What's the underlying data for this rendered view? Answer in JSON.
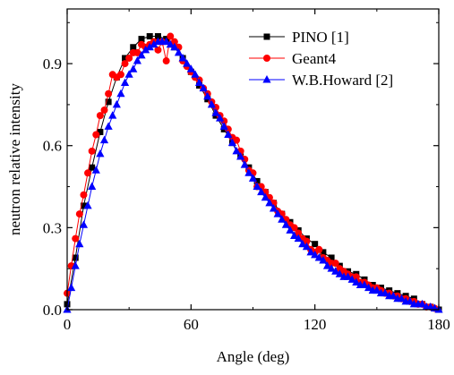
{
  "chart_data": {
    "type": "line",
    "title": "",
    "xlabel": "Angle (deg)",
    "ylabel": "neutron relative intensity",
    "xlim": [
      0,
      180
    ],
    "ylim": [
      0,
      1.1
    ],
    "xticks": [
      0,
      60,
      120,
      180
    ],
    "xtick_labels": [
      "0",
      "60",
      "120",
      "180"
    ],
    "yticks": [
      0,
      0.3,
      0.6,
      0.9
    ],
    "ytick_labels": [
      "0.0",
      "0.3",
      "0.6",
      "0.9"
    ],
    "grid": false,
    "legend_position": "top-right",
    "series": [
      {
        "name": "PINO [1]",
        "color": "#000000",
        "marker": "square",
        "x": [
          0,
          4,
          8,
          12,
          16,
          20,
          24,
          28,
          32,
          36,
          40,
          44,
          48,
          52,
          56,
          60,
          64,
          68,
          72,
          76,
          80,
          84,
          88,
          92,
          96,
          100,
          104,
          108,
          112,
          116,
          120,
          124,
          128,
          132,
          136,
          140,
          144,
          148,
          152,
          156,
          160,
          164,
          168,
          172,
          176,
          180
        ],
        "y": [
          0.02,
          0.19,
          0.38,
          0.52,
          0.65,
          0.76,
          0.85,
          0.92,
          0.96,
          0.99,
          1.0,
          1.0,
          0.99,
          0.96,
          0.92,
          0.87,
          0.82,
          0.77,
          0.71,
          0.66,
          0.61,
          0.56,
          0.52,
          0.47,
          0.43,
          0.39,
          0.35,
          0.32,
          0.29,
          0.26,
          0.24,
          0.21,
          0.19,
          0.16,
          0.14,
          0.13,
          0.11,
          0.09,
          0.08,
          0.07,
          0.06,
          0.05,
          0.04,
          0.02,
          0.01,
          0.0
        ]
      },
      {
        "name": "Geant4",
        "color": "#ff0000",
        "marker": "circle",
        "x": [
          0,
          2,
          4,
          6,
          8,
          10,
          12,
          14,
          16,
          18,
          20,
          22,
          24,
          26,
          28,
          30,
          32,
          34,
          36,
          38,
          40,
          42,
          44,
          46,
          48,
          50,
          52,
          54,
          56,
          58,
          60,
          62,
          64,
          66,
          68,
          70,
          72,
          74,
          76,
          78,
          80,
          82,
          84,
          86,
          88,
          90,
          92,
          94,
          96,
          98,
          100,
          102,
          104,
          106,
          108,
          110,
          112,
          114,
          116,
          118,
          120,
          122,
          124,
          126,
          128,
          130,
          132,
          134,
          136,
          138,
          140,
          142,
          144,
          146,
          148,
          150,
          152,
          154,
          156,
          158,
          160,
          162,
          164,
          166,
          168,
          170,
          172,
          174,
          176,
          178
        ],
        "y": [
          0.06,
          0.16,
          0.26,
          0.35,
          0.42,
          0.5,
          0.58,
          0.64,
          0.71,
          0.73,
          0.79,
          0.86,
          0.85,
          0.86,
          0.9,
          0.92,
          0.94,
          0.94,
          0.97,
          0.96,
          0.97,
          0.98,
          0.95,
          0.98,
          0.91,
          1.0,
          0.98,
          0.96,
          0.91,
          0.89,
          0.87,
          0.85,
          0.84,
          0.81,
          0.79,
          0.76,
          0.74,
          0.71,
          0.69,
          0.66,
          0.63,
          0.62,
          0.58,
          0.55,
          0.51,
          0.5,
          0.45,
          0.45,
          0.43,
          0.41,
          0.39,
          0.36,
          0.35,
          0.33,
          0.31,
          0.3,
          0.28,
          0.26,
          0.25,
          0.22,
          0.21,
          0.22,
          0.19,
          0.18,
          0.17,
          0.17,
          0.15,
          0.14,
          0.13,
          0.12,
          0.12,
          0.1,
          0.1,
          0.09,
          0.08,
          0.08,
          0.07,
          0.06,
          0.06,
          0.05,
          0.05,
          0.04,
          0.04,
          0.03,
          0.03,
          0.02,
          0.02,
          0.01,
          0.01,
          0.005
        ]
      },
      {
        "name": "W.B.Howard [2]",
        "color": "#0000ff",
        "marker": "triangle",
        "x": [
          0,
          2,
          4,
          6,
          8,
          10,
          12,
          14,
          16,
          18,
          20,
          22,
          24,
          26,
          28,
          30,
          32,
          34,
          36,
          38,
          40,
          42,
          44,
          46,
          48,
          50,
          52,
          54,
          56,
          58,
          60,
          62,
          64,
          66,
          68,
          70,
          72,
          74,
          76,
          78,
          80,
          82,
          84,
          86,
          88,
          90,
          92,
          94,
          96,
          98,
          100,
          102,
          104,
          106,
          108,
          110,
          112,
          114,
          116,
          118,
          120,
          122,
          124,
          126,
          128,
          130,
          132,
          134,
          136,
          138,
          140,
          142,
          144,
          146,
          148,
          150,
          152,
          154,
          156,
          158,
          160,
          162,
          164,
          166,
          168,
          170,
          172,
          174,
          176,
          178,
          180
        ],
        "y": [
          0.0,
          0.08,
          0.16,
          0.24,
          0.31,
          0.38,
          0.45,
          0.51,
          0.57,
          0.62,
          0.67,
          0.71,
          0.75,
          0.79,
          0.83,
          0.86,
          0.88,
          0.91,
          0.93,
          0.95,
          0.96,
          0.97,
          0.98,
          0.98,
          0.98,
          0.97,
          0.96,
          0.94,
          0.92,
          0.9,
          0.88,
          0.86,
          0.83,
          0.81,
          0.78,
          0.75,
          0.72,
          0.7,
          0.67,
          0.64,
          0.61,
          0.58,
          0.56,
          0.53,
          0.5,
          0.48,
          0.45,
          0.43,
          0.41,
          0.39,
          0.37,
          0.35,
          0.33,
          0.31,
          0.29,
          0.27,
          0.26,
          0.24,
          0.23,
          0.21,
          0.2,
          0.19,
          0.18,
          0.16,
          0.15,
          0.14,
          0.13,
          0.12,
          0.12,
          0.11,
          0.1,
          0.09,
          0.09,
          0.08,
          0.07,
          0.07,
          0.06,
          0.06,
          0.05,
          0.05,
          0.04,
          0.04,
          0.03,
          0.03,
          0.02,
          0.02,
          0.02,
          0.01,
          0.01,
          0.005,
          0.0
        ]
      }
    ]
  }
}
